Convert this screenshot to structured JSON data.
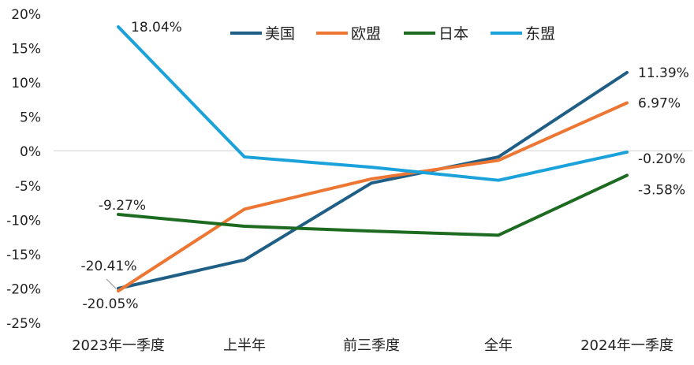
{
  "chart_data": {
    "type": "line",
    "title": "",
    "xlabel": "",
    "ylabel": "",
    "categories": [
      "2023年一季度",
      "上半年",
      "前三季度",
      "全年",
      "2024年一季度"
    ],
    "ylim": [
      -25,
      20
    ],
    "yticks": [
      20,
      15,
      10,
      5,
      0,
      -5,
      -10,
      -15,
      -20,
      -25
    ],
    "ytick_labels": [
      "20%",
      "15%",
      "10%",
      "5%",
      "0%",
      "-5%",
      "-10%",
      "-15%",
      "-20%",
      "-25%"
    ],
    "legend_position": "top",
    "series": [
      {
        "name": "美国",
        "color": "#1f5f86",
        "values": [
          -20.05,
          -15.9,
          -4.7,
          -0.9,
          11.39
        ],
        "labels": {
          "0": "-20.05%",
          "4": "11.39%"
        }
      },
      {
        "name": "欧盟",
        "color": "#ed7632",
        "values": [
          -20.41,
          -8.5,
          -4.1,
          -1.4,
          6.97
        ],
        "labels": {
          "0": "-20.41%",
          "4": "6.97%"
        }
      },
      {
        "name": "日本",
        "color": "#1d6b21",
        "values": [
          -9.27,
          -11.0,
          -11.7,
          -12.3,
          -3.58
        ],
        "labels": {
          "0": "-9.27%",
          "4": "-3.58%"
        }
      },
      {
        "name": "东盟",
        "color": "#1ba2db",
        "values": [
          18.04,
          -0.9,
          -2.4,
          -4.3,
          -0.2
        ],
        "labels": {
          "0": "18.04%",
          "4": "-0.20%"
        }
      }
    ]
  }
}
